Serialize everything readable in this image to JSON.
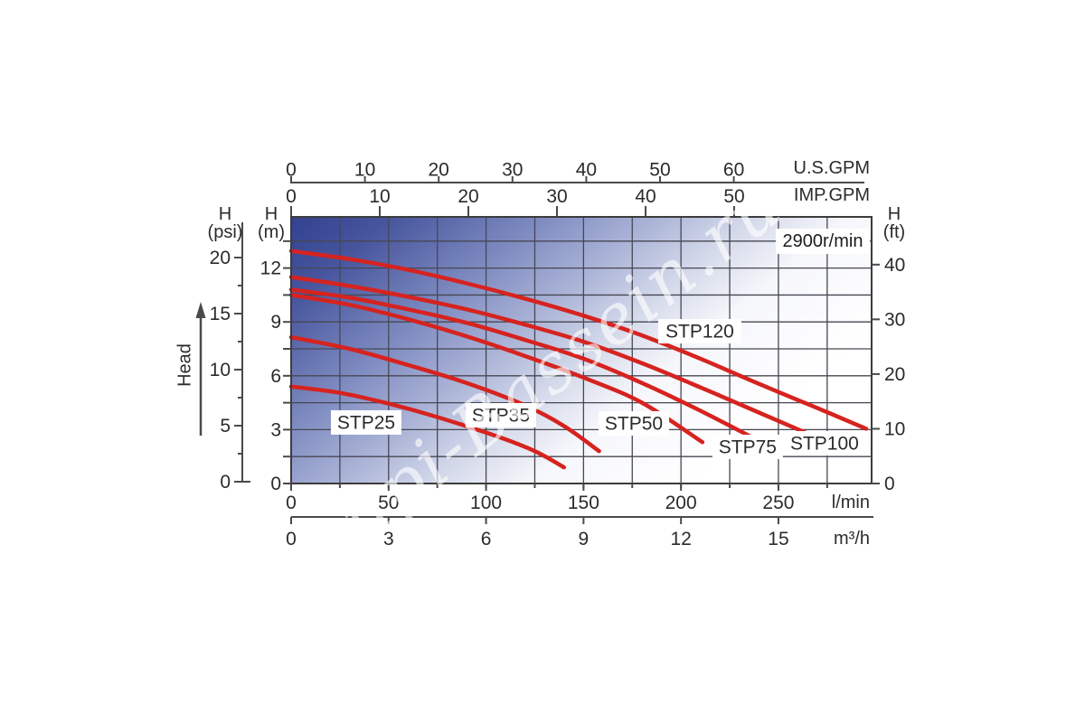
{
  "watermark": {
    "text": "kupi-Bassein.ru"
  },
  "headings": {
    "psi_h": "H",
    "psi_u": "(psi)",
    "m_h": "H",
    "m_u": "(m)",
    "ft_h": "H",
    "ft_u": "(ft)",
    "head": "Head"
  },
  "units": {
    "us_gpm": "U.S.GPM",
    "imp_gpm": "IMP.GPM",
    "lmin": "l/min",
    "m3h": "m³/h"
  },
  "colors": {
    "curve": "#d6231f",
    "grid": "#474753",
    "border": "#3c3c3c",
    "axis": "#4a4a4a",
    "text": "#2b2b2b",
    "label_bg": "#ffffff",
    "plot_gradient": [
      "#2c3b8d",
      "#48569e",
      "#7f8cc1",
      "#a9b2d6",
      "#d6dbeb",
      "#f6f7fb",
      "#ffffff"
    ]
  },
  "chart_data": {
    "type": "line",
    "speed": "2900r/min",
    "head_axis_label": "Head",
    "x_axes": [
      {
        "id": "us_gpm",
        "unit_label": "U.S.GPM",
        "ticks": [
          0,
          10,
          20,
          30,
          40,
          50,
          60
        ]
      },
      {
        "id": "imp_gpm",
        "unit_label": "IMP.GPM",
        "ticks": [
          0,
          10,
          20,
          30,
          40,
          50
        ]
      },
      {
        "id": "lmin",
        "unit_label": "l/min",
        "ticks": [
          0,
          50,
          100,
          150,
          200,
          250
        ]
      },
      {
        "id": "m3h",
        "unit_label": "m³/h",
        "ticks": [
          0,
          3,
          6,
          9,
          12,
          15
        ]
      }
    ],
    "y_axes": [
      {
        "id": "psi",
        "unit_label": "H (psi)",
        "ticks": [
          0,
          5,
          10,
          15,
          20
        ]
      },
      {
        "id": "m",
        "unit_label": "H (m)",
        "ticks": [
          0,
          3,
          6,
          9,
          12
        ]
      },
      {
        "id": "ft",
        "unit_label": "H (ft)",
        "ticks": [
          0,
          10,
          20,
          30,
          40
        ]
      }
    ],
    "x_range_lmin": [
      0,
      297.8
    ],
    "y_range_m": [
      0,
      14.85
    ],
    "grid": {
      "x_step_lmin": 25,
      "y_step_m": 1.5,
      "on": true
    },
    "series": [
      {
        "name": "STP25",
        "points_lmin_m": [
          [
            0,
            5.4
          ],
          [
            25,
            5.05
          ],
          [
            50,
            4.45
          ],
          [
            75,
            3.7
          ],
          [
            105,
            2.65
          ],
          [
            125,
            1.8
          ],
          [
            140,
            0.9
          ]
        ],
        "label_box_lmin_m": [
          20.4,
          4.08
        ]
      },
      {
        "name": "STP35",
        "points_lmin_m": [
          [
            0,
            8.15
          ],
          [
            30,
            7.5
          ],
          [
            60,
            6.6
          ],
          [
            90,
            5.6
          ],
          [
            120,
            4.35
          ],
          [
            140,
            3.2
          ],
          [
            158,
            1.8
          ]
        ],
        "label_box_lmin_m": [
          89.5,
          4.48
        ]
      },
      {
        "name": "STP50",
        "points_lmin_m": [
          [
            0,
            10.5
          ],
          [
            30,
            9.95
          ],
          [
            60,
            9.15
          ],
          [
            90,
            8.2
          ],
          [
            120,
            7.1
          ],
          [
            150,
            5.9
          ],
          [
            180,
            4.5
          ],
          [
            211,
            2.3
          ]
        ],
        "label_box_lmin_m": [
          157.7,
          4.03
        ]
      },
      {
        "name": "STP75",
        "points_lmin_m": [
          [
            0,
            10.8
          ],
          [
            30,
            10.35
          ],
          [
            60,
            9.7
          ],
          [
            90,
            8.95
          ],
          [
            120,
            8.0
          ],
          [
            150,
            6.95
          ],
          [
            180,
            5.6
          ],
          [
            210,
            4.05
          ],
          [
            244,
            2.15
          ]
        ],
        "label_box_lmin_m": [
          216.1,
          2.72
        ]
      },
      {
        "name": "STP100",
        "points_lmin_m": [
          [
            0,
            11.5
          ],
          [
            30,
            11.0
          ],
          [
            60,
            10.4
          ],
          [
            90,
            9.7
          ],
          [
            120,
            8.85
          ],
          [
            150,
            7.9
          ],
          [
            180,
            6.7
          ],
          [
            210,
            5.35
          ],
          [
            240,
            3.95
          ],
          [
            271,
            2.5
          ]
        ],
        "label_box_lmin_m": [
          252.3,
          2.92
        ]
      },
      {
        "name": "STP120",
        "points_lmin_m": [
          [
            0,
            12.95
          ],
          [
            30,
            12.5
          ],
          [
            60,
            11.9
          ],
          [
            90,
            11.15
          ],
          [
            120,
            10.3
          ],
          [
            150,
            9.35
          ],
          [
            180,
            8.25
          ],
          [
            210,
            6.95
          ],
          [
            240,
            5.55
          ],
          [
            270,
            4.2
          ],
          [
            295,
            3.05
          ]
        ],
        "label_box_lmin_m": [
          188.3,
          9.16
        ]
      }
    ]
  }
}
